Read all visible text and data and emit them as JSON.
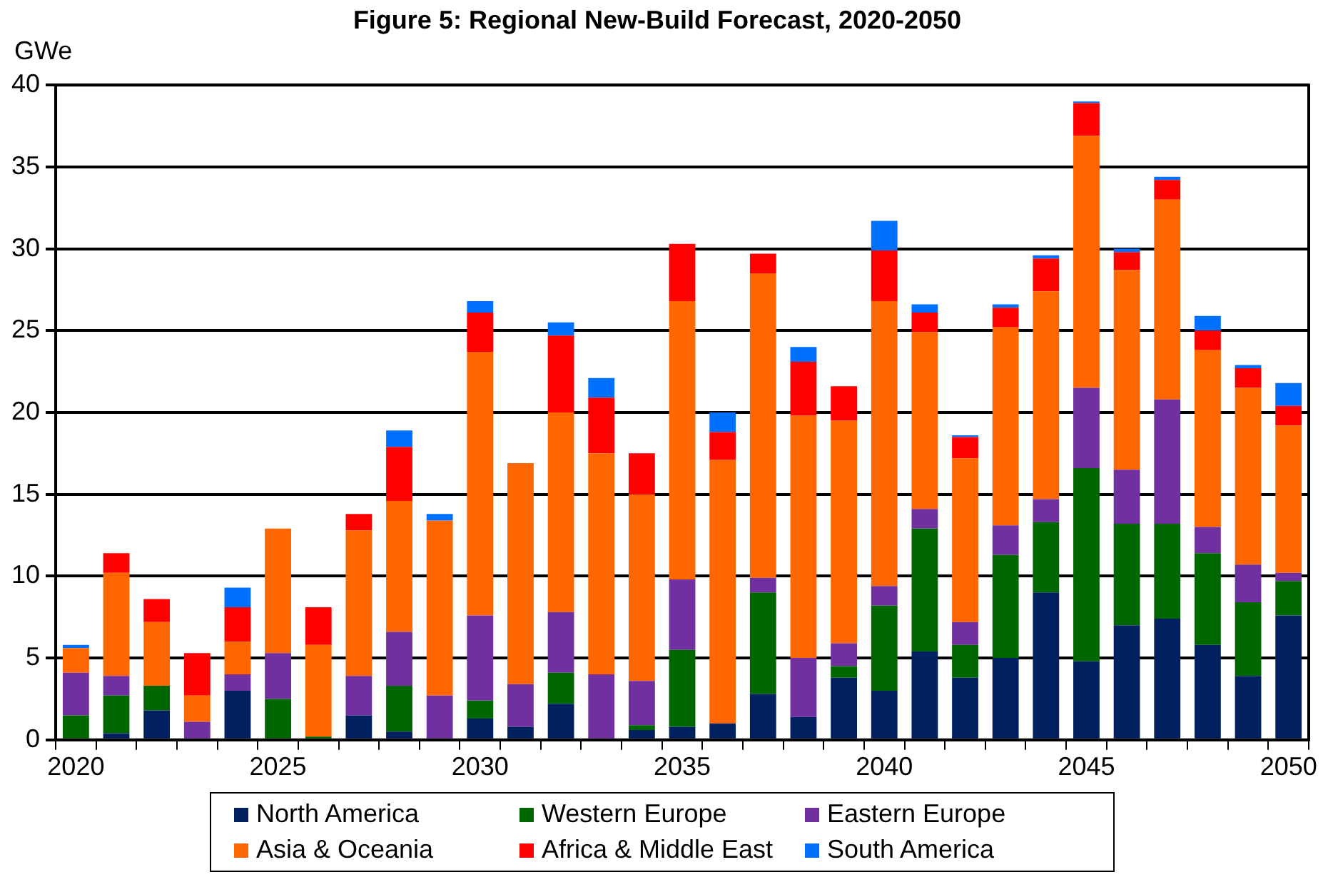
{
  "chart_data": {
    "type": "bar",
    "title": "Figure 5: Regional New-Build Forecast, 2020-2050",
    "ylabel": "GWe",
    "categories": [
      "2020",
      null,
      null,
      null,
      null,
      "2025",
      null,
      null,
      null,
      null,
      "2030",
      null,
      null,
      null,
      null,
      "2035",
      null,
      null,
      null,
      null,
      "2040",
      null,
      null,
      null,
      null,
      "2045",
      null,
      null,
      null,
      null,
      "2050"
    ],
    "stacked": true,
    "ylim": [
      0,
      40
    ],
    "yticks": [
      0,
      5,
      10,
      15,
      20,
      25,
      30,
      35,
      40
    ],
    "grid": "y",
    "legend": "bottom",
    "series": [
      {
        "name": "North America",
        "color": "#002060",
        "values": [
          0,
          0.4,
          1.8,
          0,
          3.0,
          0,
          0,
          1.5,
          0.5,
          0,
          1.3,
          0.8,
          2.2,
          0,
          0.6,
          0.8,
          1.0,
          2.8,
          1.4,
          3.8,
          3.0,
          5.4,
          3.8,
          5.0,
          9.0,
          4.8,
          7.0,
          7.4,
          5.8,
          3.9,
          7.6
        ]
      },
      {
        "name": "Western Europe",
        "color": "#006600",
        "values": [
          1.5,
          2.3,
          1.5,
          0,
          0,
          2.5,
          0.2,
          0,
          2.8,
          0,
          1.1,
          0,
          1.9,
          0,
          0.3,
          4.7,
          0,
          6.2,
          0,
          0.7,
          5.2,
          7.5,
          2.0,
          6.3,
          4.3,
          11.8,
          6.2,
          5.8,
          5.6,
          4.5,
          2.1
        ]
      },
      {
        "name": "Eastern Europe",
        "color": "#7030a0",
        "values": [
          2.6,
          1.2,
          0,
          1.1,
          1.0,
          2.8,
          0,
          2.4,
          3.3,
          2.7,
          5.2,
          2.6,
          3.7,
          4.0,
          2.7,
          4.3,
          0,
          0.9,
          3.6,
          1.4,
          1.2,
          1.2,
          1.4,
          1.8,
          1.4,
          4.9,
          3.3,
          7.6,
          1.6,
          2.3,
          0.5
        ]
      },
      {
        "name": "Asia & Oceania",
        "color": "#ff6600",
        "values": [
          1.5,
          6.3,
          3.9,
          1.6,
          2.0,
          7.6,
          5.6,
          8.9,
          8.0,
          10.7,
          16.1,
          13.5,
          12.2,
          13.5,
          11.4,
          17.0,
          16.1,
          18.6,
          14.8,
          13.6,
          17.4,
          10.8,
          10.0,
          12.1,
          12.7,
          15.4,
          12.2,
          12.2,
          10.8,
          10.8,
          9.0
        ]
      },
      {
        "name": "Africa & Middle East",
        "color": "#ff0000",
        "values": [
          0,
          1.2,
          1.4,
          2.6,
          2.1,
          0,
          2.3,
          1.0,
          3.3,
          0,
          2.4,
          0,
          4.7,
          3.4,
          2.5,
          3.5,
          1.7,
          1.2,
          3.3,
          2.1,
          3.1,
          1.2,
          1.3,
          1.2,
          2.0,
          2.0,
          1.1,
          1.2,
          1.2,
          1.2,
          1.2
        ]
      },
      {
        "name": "South America",
        "color": "#0070ff",
        "values": [
          0.2,
          0,
          0,
          0,
          1.2,
          0,
          0,
          0,
          1.0,
          0.4,
          0.7,
          0,
          0.8,
          1.2,
          0,
          0,
          1.2,
          0,
          0.9,
          0,
          1.8,
          0.5,
          0.1,
          0.2,
          0.2,
          0.1,
          0.2,
          0.2,
          0.9,
          0.2,
          1.4
        ]
      }
    ]
  }
}
